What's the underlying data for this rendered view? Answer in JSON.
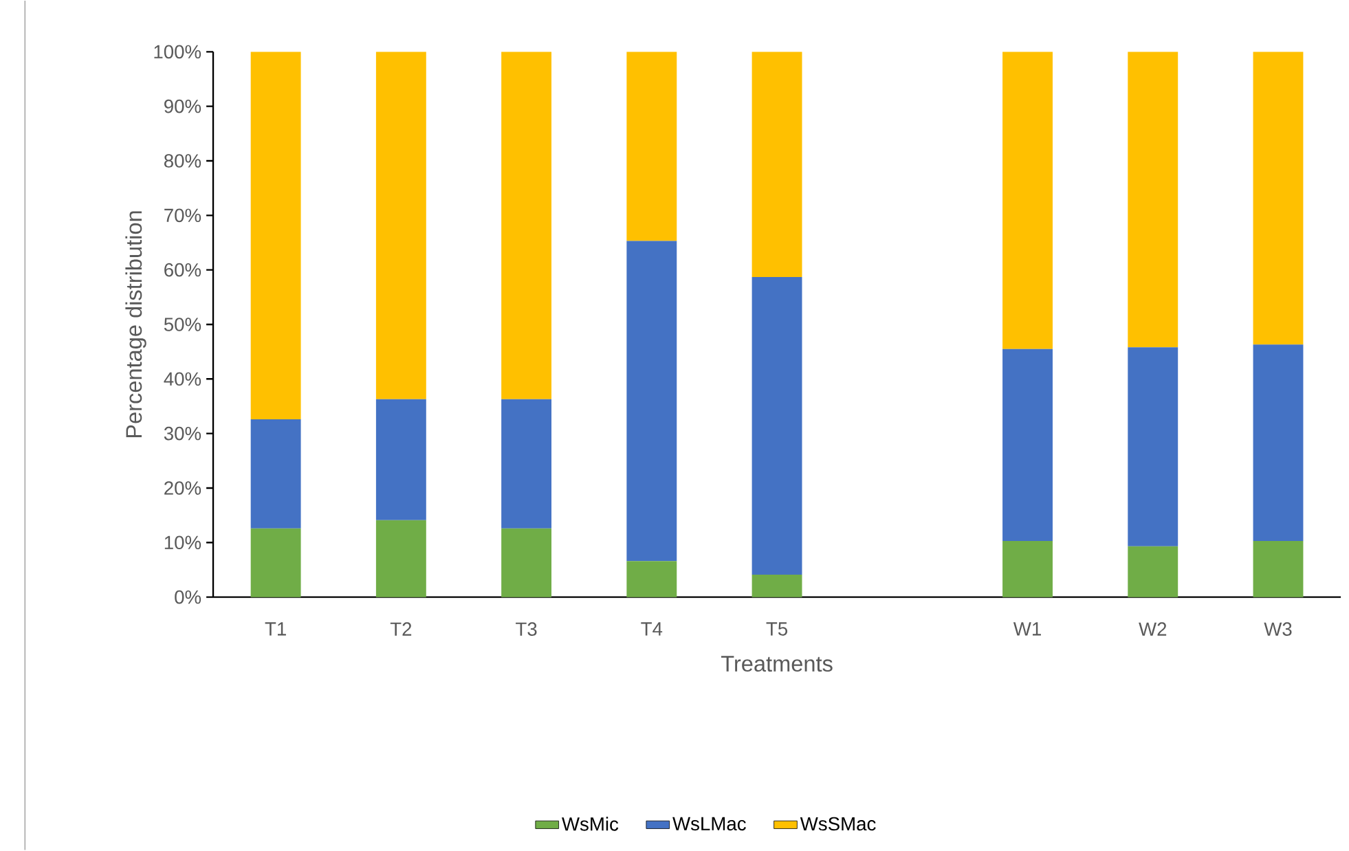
{
  "chart_data": {
    "type": "bar",
    "stacked": true,
    "xlabel": "Treatments",
    "ylabel": "Percentage distribution",
    "categories": [
      "T1",
      "T2",
      "T3",
      "T4",
      "T5",
      null,
      "W1",
      "W2",
      "W3"
    ],
    "series": [
      {
        "name": "WsMic",
        "color": "#70ad47",
        "values": [
          12.6,
          14.1,
          12.6,
          6.6,
          4.1,
          null,
          10.3,
          9.3,
          10.3
        ]
      },
      {
        "name": "WsLMac",
        "color": "#4472c4",
        "values": [
          20.0,
          22.2,
          23.7,
          58.7,
          54.6,
          null,
          35.2,
          36.5,
          36.0
        ]
      },
      {
        "name": "WsSMac",
        "color": "#ffc000",
        "values": [
          67.4,
          63.7,
          63.7,
          34.7,
          41.3,
          null,
          54.5,
          54.2,
          53.7
        ]
      }
    ],
    "ylim": [
      0,
      100
    ],
    "yticks": [
      {
        "value": 0,
        "label": "0%"
      },
      {
        "value": 10,
        "label": "10%"
      },
      {
        "value": 20,
        "label": "20%"
      },
      {
        "value": 30,
        "label": "30%"
      },
      {
        "value": 40,
        "label": "40%"
      },
      {
        "value": 50,
        "label": "50%"
      },
      {
        "value": 60,
        "label": "60%"
      },
      {
        "value": 70,
        "label": "70%"
      },
      {
        "value": 80,
        "label": "80%"
      },
      {
        "value": 90,
        "label": "90%"
      },
      {
        "value": 100,
        "label": "100%"
      }
    ],
    "grid": false,
    "legend": "bottom"
  }
}
